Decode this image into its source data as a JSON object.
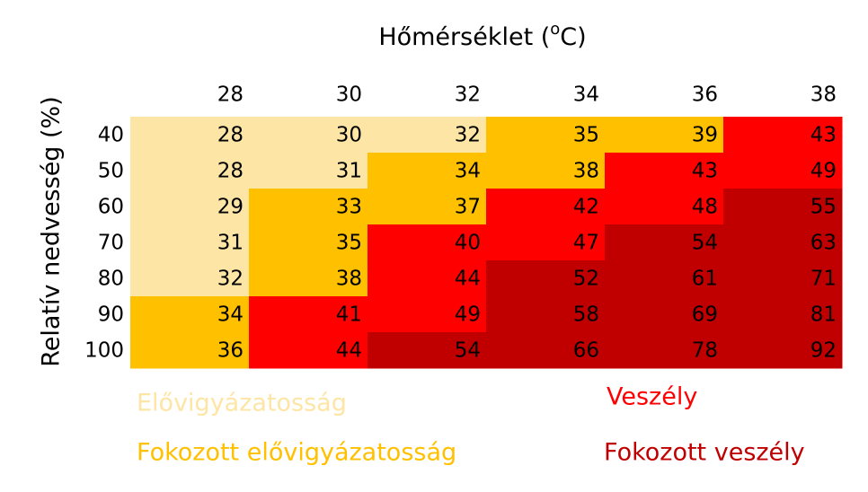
{
  "header": {
    "title_parts": [
      "Hőmérséklet (",
      "o",
      "C)"
    ],
    "y_label": "Relatív nedvesség (%)"
  },
  "legend": [
    {
      "name": "Elővigyázatosság",
      "color": "#fde5a5"
    },
    {
      "name": "Fokozott elővigyázatosság",
      "color": "#ffc000"
    },
    {
      "name": "Veszély",
      "color": "#ff0000"
    },
    {
      "name": "Fokozott veszély",
      "color": "#c00000"
    }
  ],
  "table": {
    "columns": [
      28,
      30,
      32,
      34,
      36,
      38
    ],
    "rows": [
      {
        "label": 40,
        "values": [
          28,
          30,
          32,
          35,
          39,
          43
        ],
        "levels": [
          0,
          0,
          0,
          1,
          1,
          2
        ]
      },
      {
        "label": 50,
        "values": [
          28,
          31,
          34,
          38,
          43,
          49
        ],
        "levels": [
          0,
          0,
          1,
          1,
          2,
          2
        ]
      },
      {
        "label": 60,
        "values": [
          29,
          33,
          37,
          42,
          48,
          55
        ],
        "levels": [
          0,
          1,
          1,
          2,
          2,
          3
        ]
      },
      {
        "label": 70,
        "values": [
          31,
          35,
          40,
          47,
          54,
          63
        ],
        "levels": [
          0,
          1,
          2,
          2,
          3,
          3
        ]
      },
      {
        "label": 80,
        "values": [
          32,
          38,
          44,
          52,
          61,
          71
        ],
        "levels": [
          0,
          1,
          2,
          3,
          3,
          3
        ]
      },
      {
        "label": 90,
        "values": [
          34,
          41,
          49,
          58,
          69,
          81
        ],
        "levels": [
          1,
          2,
          2,
          3,
          3,
          3
        ]
      },
      {
        "label": 100,
        "values": [
          36,
          44,
          54,
          66,
          78,
          92
        ],
        "levels": [
          1,
          2,
          3,
          3,
          3,
          3
        ]
      }
    ]
  }
}
